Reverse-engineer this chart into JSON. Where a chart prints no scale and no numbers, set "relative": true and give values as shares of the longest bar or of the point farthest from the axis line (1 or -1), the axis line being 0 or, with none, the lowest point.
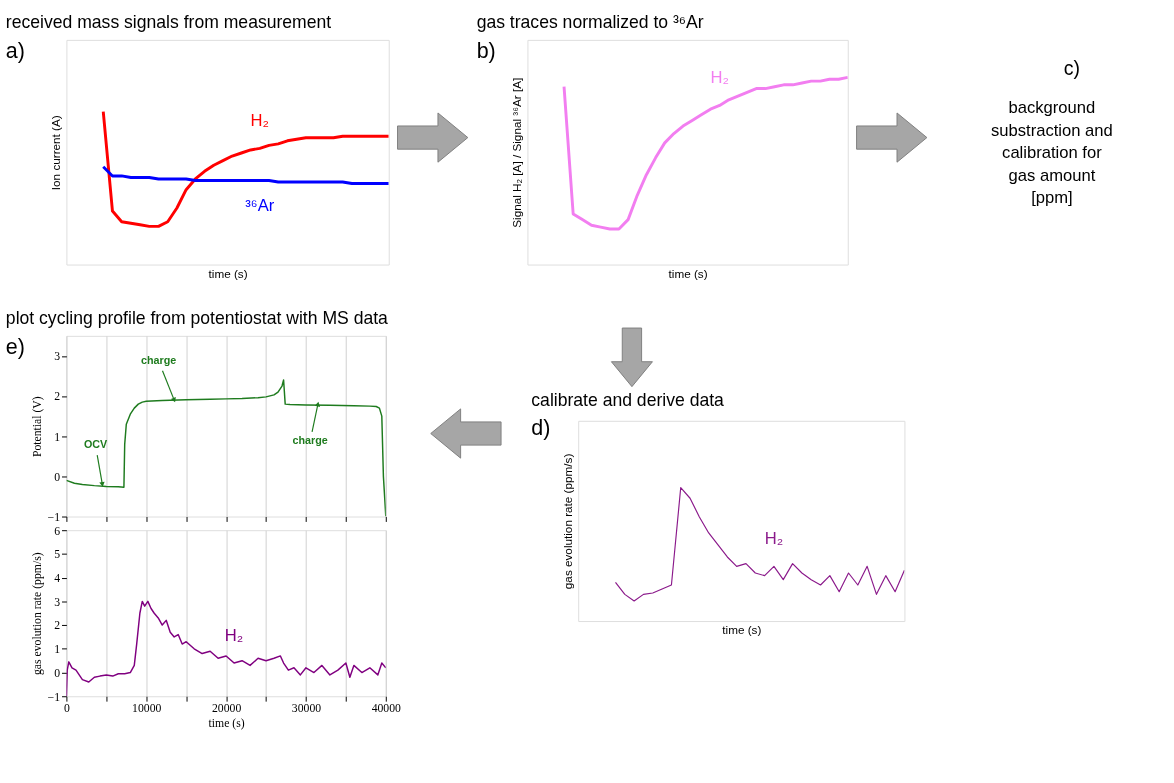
{
  "chart_data": [
    {
      "type": "line",
      "title": "received mass signals from measurement",
      "xlabel": "time (s)",
      "ylabel": "Ion current (A)",
      "relative": true,
      "annotations": [
        "a)"
      ],
      "categories": [
        null,
        null,
        null,
        null,
        null,
        null,
        null,
        null,
        null,
        null,
        null,
        null,
        null,
        null,
        null,
        null,
        null,
        null,
        null,
        null,
        null,
        null,
        null,
        null,
        null,
        null,
        null,
        null,
        null,
        null,
        null,
        null,
        null,
        null,
        null,
        null
      ],
      "series": [
        {
          "name": "H₂",
          "color": "#ff0000",
          "values": [
            null,
            null,
            null,
            null,
            1.0,
            0.35,
            0.28,
            0.27,
            0.26,
            0.25,
            0.25,
            0.28,
            0.37,
            0.49,
            0.56,
            0.61,
            0.65,
            0.68,
            0.71,
            0.73,
            0.75,
            0.76,
            0.78,
            0.79,
            0.81,
            0.82,
            0.83,
            0.83,
            0.83,
            0.83,
            0.84,
            0.84,
            0.84,
            0.84,
            0.84,
            0.84
          ]
        },
        {
          "name": "³⁶Ar",
          "color": "#0000ff",
          "values": [
            null,
            null,
            null,
            null,
            0.64,
            0.58,
            0.58,
            0.57,
            0.57,
            0.57,
            0.56,
            0.56,
            0.56,
            0.56,
            0.55,
            0.55,
            0.55,
            0.55,
            0.55,
            0.55,
            0.55,
            0.55,
            0.55,
            0.54,
            0.54,
            0.54,
            0.54,
            0.54,
            0.54,
            0.54,
            0.54,
            0.53,
            0.53,
            0.53,
            0.53,
            0.53
          ]
        }
      ]
    },
    {
      "type": "line",
      "title": "gas traces normalized to ³⁶Ar",
      "xlabel": "time (s)",
      "ylabel": "Signal H₂ [A] / Signal ³⁶Ar [A]",
      "relative": true,
      "annotations": [
        "b)"
      ],
      "categories": [
        null,
        null,
        null,
        null,
        null,
        null,
        null,
        null,
        null,
        null,
        null,
        null,
        null,
        null,
        null,
        null,
        null,
        null,
        null,
        null,
        null,
        null,
        null,
        null,
        null,
        null,
        null,
        null,
        null,
        null,
        null,
        null,
        null,
        null,
        null,
        null
      ],
      "series": [
        {
          "name": "H₂",
          "color": "#f27ef0",
          "values": [
            null,
            null,
            null,
            null,
            0.95,
            0.27,
            0.24,
            0.21,
            0.2,
            0.19,
            0.19,
            0.24,
            0.37,
            0.48,
            0.57,
            0.65,
            0.7,
            0.74,
            0.77,
            0.8,
            0.83,
            0.85,
            0.88,
            0.9,
            0.92,
            0.94,
            0.94,
            0.95,
            0.96,
            0.96,
            0.97,
            0.98,
            0.98,
            0.99,
            0.99,
            1.0
          ]
        }
      ]
    },
    {
      "type": "other",
      "annotations": [
        "c)",
        "background substraction and calibration for gas amount  [ppm]"
      ]
    },
    {
      "type": "line",
      "title": "calibrate and derive data",
      "xlabel": "time (s)",
      "ylabel": "gas evolution rate (ppm/s)",
      "relative": true,
      "annotations": [
        "d)"
      ],
      "categories": [
        null,
        null,
        null,
        null,
        null,
        null,
        null,
        null,
        null,
        null,
        null,
        null,
        null,
        null,
        null,
        null,
        null,
        null,
        null,
        null,
        null,
        null,
        null,
        null,
        null,
        null,
        null,
        null,
        null,
        null,
        null,
        null,
        null,
        null,
        null,
        null
      ],
      "series": [
        {
          "name": "H₂",
          "color": "#8b1a8b",
          "values": [
            null,
            null,
            null,
            null,
            0.29,
            0.2,
            0.15,
            0.2,
            0.21,
            0.24,
            0.27,
            1.0,
            0.92,
            0.78,
            0.66,
            0.57,
            0.48,
            0.41,
            0.43,
            0.36,
            0.34,
            0.41,
            0.31,
            0.43,
            0.36,
            0.31,
            0.27,
            0.34,
            0.22,
            0.36,
            0.27,
            0.41,
            0.2,
            0.34,
            0.22,
            0.38
          ]
        }
      ]
    },
    {
      "type": "line",
      "title": "plot cycling profile from potentiostat with MS data",
      "ylabel": "Potential (V)",
      "xlim": [
        0,
        40000
      ],
      "ylim": [
        -1,
        3.5
      ],
      "xticks": [
        0,
        {
          "value": 5000,
          "label": null
        },
        10000,
        {
          "value": 15000,
          "label": null
        },
        20000,
        {
          "value": 25000,
          "label": null
        },
        30000,
        {
          "value": 35000,
          "label": null
        },
        40000
      ],
      "yticks": [
        -1,
        0,
        1,
        2,
        3
      ],
      "tick_labels": "y",
      "grid": "x",
      "annotations": [
        "e)",
        {
          "text": "OCV",
          "x": 4500,
          "y": -0.2
        },
        {
          "text": "charge",
          "x": 13500,
          "y": 1.9
        },
        {
          "text": "charge",
          "x": 31500,
          "y": 1.8
        }
      ],
      "series": [
        {
          "color": "#1e7b1e",
          "x": [
            0,
            1000,
            2000,
            3500,
            5000,
            6500,
            7200,
            7300,
            7500,
            8000,
            8500,
            9000,
            9500,
            10000,
            12000,
            15000,
            18000,
            20000,
            22000,
            24000,
            25000,
            26000,
            26500,
            27000,
            27200,
            27400,
            28000,
            30000,
            33000,
            36000,
            38000,
            38800,
            39200,
            39500,
            39700,
            40000
          ],
          "values": [
            -0.1,
            -0.17,
            -0.2,
            -0.23,
            -0.25,
            -0.26,
            -0.27,
            0.8,
            1.3,
            1.55,
            1.7,
            1.8,
            1.85,
            1.87,
            1.89,
            1.91,
            1.92,
            1.93,
            1.94,
            1.96,
            1.98,
            2.03,
            2.1,
            2.25,
            2.4,
            1.8,
            1.79,
            1.78,
            1.77,
            1.76,
            1.75,
            1.74,
            1.7,
            1.5,
            0,
            -1
          ]
        }
      ]
    },
    {
      "type": "line",
      "xlabel": "time (s)",
      "ylabel": "gas evolution rate (ppm/s)",
      "xlim": [
        0,
        40000
      ],
      "ylim": [
        -1,
        6
      ],
      "xticks": [
        0,
        {
          "value": 5000,
          "label": null
        },
        10000,
        {
          "value": 15000,
          "label": null
        },
        20000,
        {
          "value": 25000,
          "label": null
        },
        30000,
        {
          "value": 35000,
          "label": null
        },
        40000
      ],
      "yticks": [
        -1,
        0,
        1,
        2,
        3,
        4,
        5,
        6
      ],
      "grid": "x",
      "series": [
        {
          "name": "H₂",
          "color": "#800080",
          "x": [
            0,
            100,
            300,
            700,
            1200,
            2000,
            2800,
            3500,
            4200,
            5000,
            5800,
            6500,
            7300,
            8000,
            8500,
            8800,
            9200,
            9500,
            9800,
            10200,
            10600,
            11000,
            11500,
            12000,
            12500,
            13000,
            13500,
            14000,
            14500,
            15000,
            16000,
            17000,
            18000,
            19000,
            20000,
            21000,
            22000,
            23000,
            24000,
            25000,
            26000,
            26800,
            27200,
            27800,
            28500,
            29300,
            30000,
            31000,
            32000,
            33000,
            34000,
            35000,
            35500,
            36000,
            37000,
            38000,
            39000,
            39500,
            40000
          ],
          "values": [
            -1,
            0.1,
            0.45,
            0.2,
            0.1,
            -0.3,
            -0.4,
            -0.2,
            -0.15,
            -0.1,
            -0.15,
            -0.05,
            -0.05,
            0,
            0.3,
            1.2,
            2.5,
            3.0,
            2.8,
            3.0,
            2.7,
            2.5,
            2.3,
            2.0,
            2.2,
            1.7,
            1.5,
            1.6,
            1.2,
            1.3,
            1.0,
            0.8,
            0.9,
            0.6,
            0.7,
            0.4,
            0.5,
            0.3,
            0.6,
            0.5,
            0.6,
            0.7,
            0.4,
            0.1,
            0.2,
            -0.1,
            0.2,
            0,
            0.3,
            -0.1,
            0.1,
            0.4,
            -0.2,
            0.3,
            0,
            0.2,
            -0.1,
            0.4,
            0.2
          ]
        }
      ]
    }
  ]
}
